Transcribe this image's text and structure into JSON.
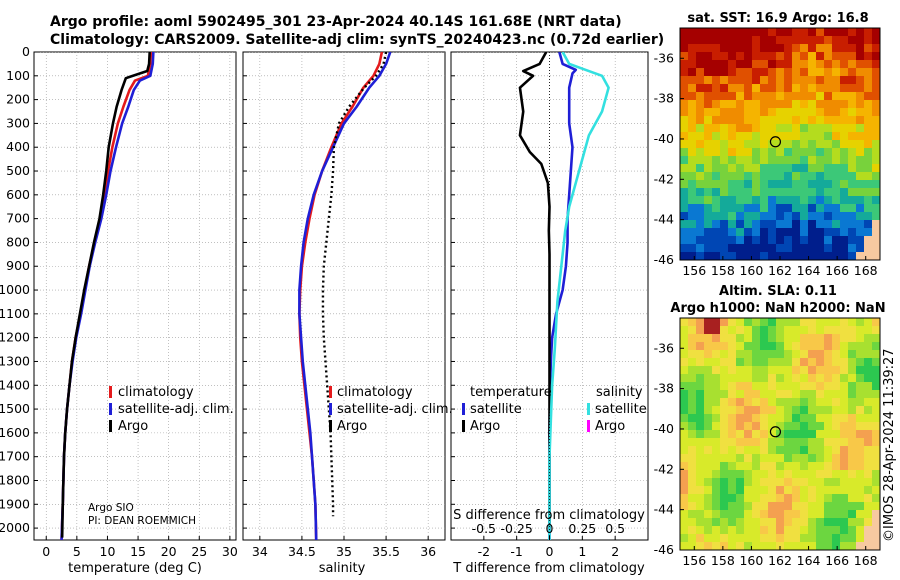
{
  "header": {
    "line1": "Argo profile: aoml 5902495_301 23-Apr-2024 40.14S 161.68E (NRT data)",
    "line2": "Climatology: CARS2009. Satellite-adj clim: synTS_20240423.nc (0.72d earlier)"
  },
  "footer": {
    "institution": "Argo SIO",
    "pi": "PI: DEAN ROEMMICH",
    "copyright": "©IMOS 28-Apr-2024 11:39:27"
  },
  "colors": {
    "climatology": "#e41a1c",
    "satellite": "#1f1fd6",
    "argo": "#000000",
    "sal_satellite": "#33e0e0",
    "sal_argo": "#ff00ff"
  },
  "chart_data": [
    {
      "type": "line",
      "name": "temperature-profile",
      "xlabel": "temperature (deg C)",
      "ylabel": "",
      "xlim": [
        -2,
        31
      ],
      "ylim": [
        2050,
        0
      ],
      "xticks": [
        0,
        5,
        10,
        15,
        20,
        25,
        30
      ],
      "yticks": [
        0,
        100,
        200,
        300,
        400,
        500,
        600,
        700,
        800,
        900,
        1000,
        1100,
        1200,
        1300,
        1400,
        1500,
        1600,
        1700,
        1800,
        1900,
        2000
      ],
      "legend": [
        "climatology",
        "satellite-adj. clim.",
        "Argo"
      ],
      "legend_position": "lower-right",
      "series": [
        {
          "name": "climatology",
          "color": "#e41a1c",
          "dash": "solid",
          "x": [
            17.1,
            17.0,
            16.6,
            14.5,
            13.6,
            12.6,
            11.7,
            10.8,
            10.1,
            9.5,
            8.8,
            7.9,
            7.0,
            6.3,
            5.6,
            4.8,
            4.2,
            3.8,
            3.4,
            3.1,
            2.9,
            2.7,
            2.5
          ],
          "y": [
            0,
            50,
            100,
            120,
            160,
            230,
            300,
            400,
            500,
            600,
            700,
            800,
            900,
            1000,
            1100,
            1200,
            1300,
            1400,
            1500,
            1600,
            1700,
            1900,
            2050
          ]
        },
        {
          "name": "satellite-adj. clim.",
          "color": "#1f1fd6",
          "dash": "solid",
          "x": [
            17.5,
            17.4,
            17.0,
            15.3,
            14.3,
            13.4,
            12.4,
            11.4,
            10.5,
            9.8,
            9.0,
            8.0,
            7.1,
            6.4,
            5.7,
            4.9,
            4.3,
            3.8,
            3.4,
            3.1,
            2.9,
            2.7,
            2.5
          ],
          "y": [
            0,
            50,
            100,
            120,
            160,
            230,
            300,
            400,
            500,
            600,
            700,
            800,
            900,
            1000,
            1100,
            1200,
            1300,
            1400,
            1500,
            1600,
            1700,
            1900,
            2050
          ]
        },
        {
          "name": "Argo",
          "color": "#000000",
          "dash": "solid",
          "x": [
            16.9,
            16.8,
            16.5,
            13.0,
            12.3,
            11.5,
            10.9,
            10.2,
            9.8,
            9.3,
            8.7,
            7.8,
            7.0,
            6.2,
            5.5,
            4.8,
            4.2,
            3.8,
            3.4,
            3.1,
            2.9,
            2.7,
            2.6
          ],
          "y": [
            0,
            50,
            80,
            110,
            160,
            230,
            300,
            400,
            500,
            600,
            700,
            800,
            900,
            1000,
            1100,
            1200,
            1300,
            1400,
            1500,
            1600,
            1700,
            1900,
            2040
          ]
        }
      ]
    },
    {
      "type": "line",
      "name": "salinity-profile",
      "xlabel": "salinity",
      "ylabel": "",
      "xlim": [
        33.8,
        36.2
      ],
      "ylim": [
        2050,
        0
      ],
      "xticks": [
        34,
        34.5,
        35,
        35.5,
        36
      ],
      "xticklabels": [
        "34",
        "34.5",
        "35",
        "35.5",
        "36"
      ],
      "legend": [
        "climatology",
        "satellite-adj. clim.",
        "Argo"
      ],
      "legend_position": "lower-right",
      "series": [
        {
          "name": "climatology",
          "color": "#e41a1c",
          "dash": "solid",
          "x": [
            35.45,
            35.42,
            35.35,
            35.23,
            35.1,
            34.97,
            34.85,
            34.74,
            34.65,
            34.59,
            34.54,
            34.5,
            34.48,
            34.47,
            34.48,
            34.5,
            34.53,
            34.56,
            34.59,
            34.62,
            34.64,
            34.66,
            34.67
          ],
          "y": [
            0,
            50,
            100,
            150,
            230,
            300,
            400,
            500,
            600,
            700,
            800,
            900,
            1000,
            1100,
            1200,
            1300,
            1400,
            1500,
            1600,
            1700,
            1800,
            1900,
            2050
          ]
        },
        {
          "name": "satellite-adj. clim.",
          "color": "#1f1fd6",
          "dash": "solid",
          "x": [
            35.55,
            35.5,
            35.42,
            35.3,
            35.15,
            35.0,
            34.87,
            34.74,
            34.64,
            34.57,
            34.52,
            34.49,
            34.47,
            34.47,
            34.49,
            34.51,
            34.54,
            34.57,
            34.6,
            34.62,
            34.64,
            34.66,
            34.67
          ],
          "y": [
            0,
            50,
            100,
            150,
            230,
            300,
            400,
            500,
            600,
            700,
            800,
            900,
            1000,
            1100,
            1200,
            1300,
            1400,
            1500,
            1600,
            1700,
            1800,
            1900,
            2050
          ]
        },
        {
          "name": "Argo",
          "color": "#000000",
          "dash": "dotted",
          "x": [
            35.5,
            35.47,
            35.38,
            35.24,
            35.06,
            34.94,
            34.88,
            34.87,
            34.85,
            34.82,
            34.79,
            34.76,
            34.75,
            34.75,
            34.76,
            34.78,
            34.8,
            34.82,
            34.84,
            34.85,
            34.86,
            34.87,
            34.87
          ],
          "y": [
            0,
            50,
            100,
            150,
            230,
            300,
            400,
            500,
            600,
            700,
            800,
            900,
            1000,
            1100,
            1200,
            1300,
            1400,
            1500,
            1600,
            1700,
            1800,
            1900,
            1950
          ]
        }
      ]
    },
    {
      "type": "line",
      "name": "difference-profile",
      "xlabel": "T difference from climatology",
      "secondary_xlabel": "S difference from climatology",
      "ylabel": "",
      "xlim": [
        -3,
        3
      ],
      "ylim": [
        2050,
        0
      ],
      "xticks": [
        -2,
        -1,
        0,
        1,
        2
      ],
      "secondary_xticks": [
        -0.5,
        -0.25,
        0,
        0.25,
        0.5
      ],
      "legend_temperature_title": "temperature",
      "legend_salinity_title": "salinity",
      "legend": [
        "satellite",
        "Argo",
        "satellite",
        "Argo"
      ],
      "series": [
        {
          "name": "satellite",
          "group": "temperature",
          "color": "#1f1fd6",
          "dash": "solid",
          "x": [
            0.3,
            0.4,
            0.8,
            0.7,
            0.6,
            0.6,
            0.6,
            0.7,
            0.65,
            0.6,
            0.55,
            0.55,
            0.5,
            0.4,
            0.2,
            0.08,
            0.04,
            0.02,
            0.01,
            0.0,
            0.0,
            0.0,
            0.0
          ],
          "y": [
            0,
            50,
            75,
            90,
            150,
            250,
            300,
            400,
            500,
            600,
            700,
            800,
            900,
            1000,
            1100,
            1200,
            1300,
            1400,
            1500,
            1600,
            1700,
            1900,
            2050
          ]
        },
        {
          "name": "Argo",
          "group": "temperature",
          "color": "#000000",
          "dash": "solid",
          "x": [
            -0.1,
            -0.3,
            -0.8,
            -0.5,
            -0.9,
            -0.8,
            -0.9,
            -0.6,
            -0.25,
            -0.05,
            0.0,
            -0.02,
            0.0,
            0.0,
            0.0,
            0.0,
            0.0,
            0.0,
            0.0,
            0.0,
            0.0,
            0.0
          ],
          "y": [
            0,
            50,
            80,
            100,
            150,
            250,
            350,
            420,
            470,
            550,
            650,
            750,
            850,
            950,
            1050,
            1150,
            1250,
            1400,
            1550,
            1700,
            1850,
            2000
          ]
        },
        {
          "name": "satellite",
          "group": "salinity",
          "color": "#33e0e0",
          "dash": "solid",
          "x": [
            0.1,
            0.15,
            0.25,
            0.4,
            0.45,
            0.4,
            0.3,
            0.25,
            0.2,
            0.15,
            0.12,
            0.1,
            0.08,
            0.06,
            0.05,
            0.04,
            0.02,
            0.01,
            0.0,
            0.0,
            0.0,
            0.0
          ],
          "y": [
            0,
            50,
            70,
            100,
            150,
            250,
            350,
            450,
            550,
            650,
            750,
            850,
            950,
            1050,
            1150,
            1250,
            1400,
            1550,
            1700,
            1850,
            2000,
            2050
          ]
        },
        {
          "name": "Argo",
          "group": "salinity",
          "color": "#ff00ff",
          "dash": "solid",
          "x": [],
          "y": []
        }
      ]
    },
    {
      "type": "heatmap",
      "name": "sst-map",
      "title": "sat. SST: 16.9 Argo: 16.8",
      "xlim": [
        155,
        169
      ],
      "ylim": [
        -46,
        -34.5
      ],
      "xticks": [
        156,
        158,
        160,
        162,
        164,
        166,
        168
      ],
      "yticks": [
        -36,
        -38,
        -40,
        -42,
        -44,
        -46
      ],
      "marker": {
        "lon": 161.68,
        "lat": -40.14
      }
    },
    {
      "type": "heatmap",
      "name": "sla-map",
      "title": "Altim. SLA: 0.11",
      "subtitle": "Argo h1000: NaN h2000: NaN",
      "xlim": [
        155,
        169
      ],
      "ylim": [
        -46,
        -34.5
      ],
      "xticks": [
        156,
        158,
        160,
        162,
        164,
        166,
        168
      ],
      "yticks": [
        -36,
        -38,
        -40,
        -42,
        -44,
        -46
      ],
      "marker": {
        "lon": 161.68,
        "lat": -40.14
      }
    }
  ]
}
